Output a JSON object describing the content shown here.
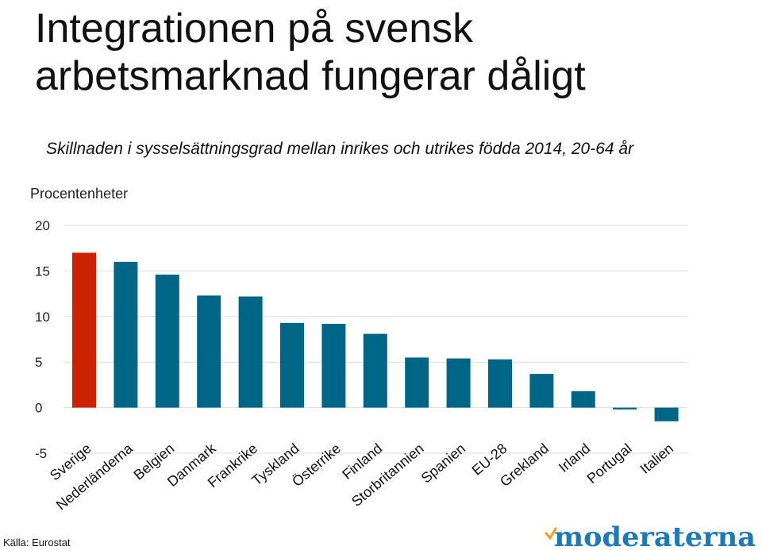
{
  "header": {
    "title": "Integrationen på svensk arbetsmarknad fungerar dåligt",
    "subtitle": "Skillnaden i sysselsättningsgrad mellan inrikes och utrikes födda 2014, 20-64 år"
  },
  "footer": {
    "source": "Källa: Eurostat",
    "logo_text": "moderaterna"
  },
  "colors": {
    "highlight": "#cc2200",
    "bar": "#006688",
    "grid": "#dddddd",
    "logo": "#1c7ab8",
    "logo_accent": "#f0a21a"
  },
  "chart_data": {
    "type": "bar",
    "ylabel": "Procentenheter",
    "ylim": [
      -5,
      20
    ],
    "yticks": [
      20,
      15,
      10,
      5,
      0,
      -5
    ],
    "grid": true,
    "categories": [
      "Sverige",
      "Nederländerna",
      "Belgien",
      "Danmark",
      "Frankrike",
      "Tyskland",
      "Österrike",
      "Finland",
      "Storbritannien",
      "Spanien",
      "EU-28",
      "Grekland",
      "Irland",
      "Portugal",
      "Italien"
    ],
    "values": [
      17.0,
      16.0,
      14.6,
      12.3,
      12.2,
      9.3,
      9.2,
      8.1,
      5.5,
      5.4,
      5.3,
      3.7,
      1.8,
      -0.2,
      -1.5
    ],
    "highlight": "Sverige"
  }
}
